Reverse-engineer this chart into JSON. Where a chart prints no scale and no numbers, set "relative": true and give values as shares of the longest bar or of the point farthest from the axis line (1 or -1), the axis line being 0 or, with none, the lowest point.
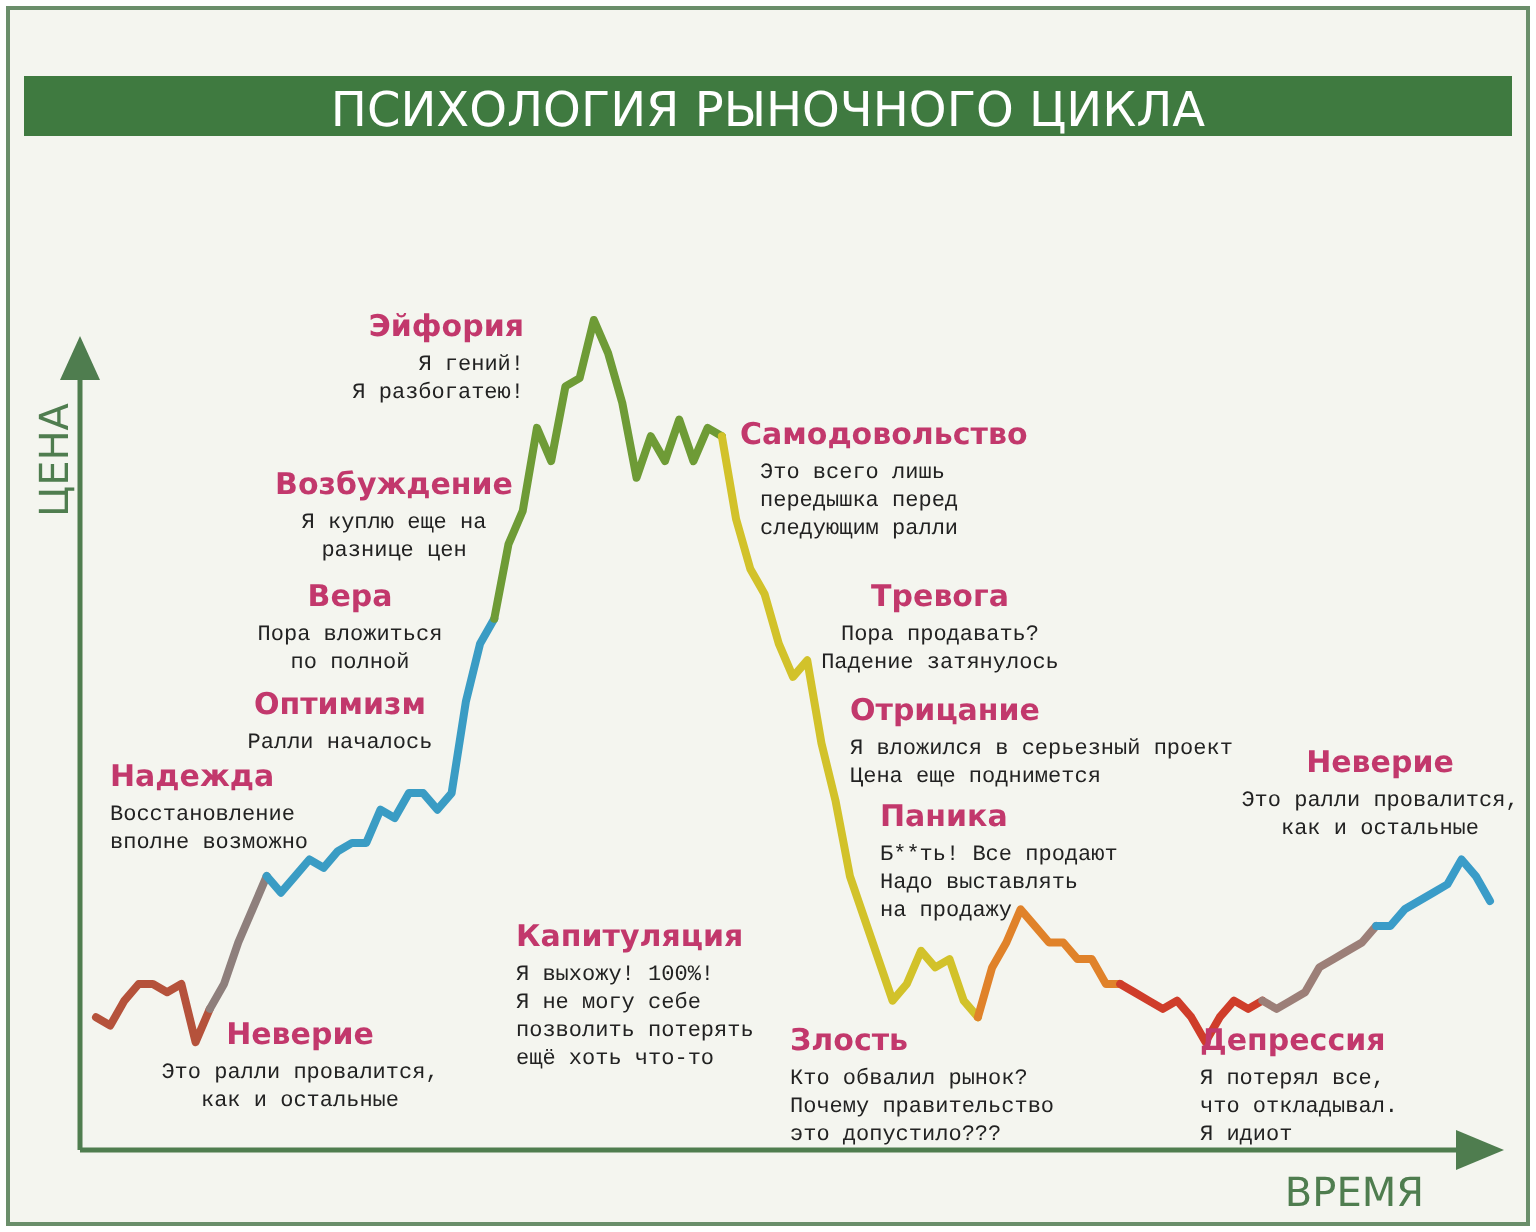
{
  "chart_data": {
    "type": "line",
    "relative": true,
    "title": "ПСИХОЛОГИЯ РЫНОЧНОГО ЦИКЛА",
    "xlabel": "ВРЕМЯ",
    "ylabel": "ЦЕНА",
    "categories": [
      null,
      null,
      null,
      null,
      null,
      null,
      null,
      null,
      null,
      null,
      null,
      null,
      null,
      null,
      null,
      null,
      null,
      null,
      null,
      null,
      null,
      null,
      null,
      null,
      null,
      null,
      null,
      null,
      null,
      null,
      null,
      null,
      null,
      null,
      null,
      null,
      null,
      null,
      null,
      null,
      null,
      null,
      null,
      null,
      null,
      null,
      null,
      null,
      null,
      null,
      null,
      null,
      null,
      null,
      null,
      null,
      null,
      null,
      null,
      null,
      null,
      null,
      null,
      null,
      null,
      null,
      null,
      null,
      null,
      null,
      null,
      null,
      null,
      null,
      null,
      null,
      null,
      null,
      null,
      null,
      null,
      null,
      null,
      null,
      null,
      null,
      null,
      null,
      null,
      null,
      null,
      null,
      null,
      null,
      null,
      null,
      null,
      null,
      null
    ],
    "series": [
      {
        "color": "#b5523b",
        "values": [
          0.16,
          0.15,
          0.18,
          0.2,
          0.2,
          0.19,
          0.2,
          0.13,
          0.17,
          null,
          null,
          null,
          null,
          null,
          null,
          null,
          null,
          null,
          null,
          null,
          null,
          null,
          null,
          null,
          null,
          null,
          null,
          null,
          null,
          null,
          null,
          null,
          null,
          null,
          null,
          null,
          null,
          null,
          null,
          null,
          null,
          null,
          null,
          null,
          null,
          null,
          null,
          null,
          null,
          null,
          null,
          null,
          null,
          null,
          null,
          null,
          null,
          null,
          null,
          null,
          null,
          null,
          null,
          null,
          null,
          null,
          null,
          null,
          null,
          null,
          null,
          null,
          null,
          null,
          null,
          null,
          null,
          null,
          null,
          null,
          null,
          null,
          null,
          null,
          null,
          null,
          null,
          null,
          null,
          null,
          null,
          null,
          null,
          null,
          null,
          null,
          null,
          null,
          null
        ]
      },
      {
        "color": "#8e7f7c",
        "values": [
          null,
          null,
          null,
          null,
          null,
          null,
          null,
          null,
          0.17,
          0.2,
          0.25,
          0.29,
          0.33,
          null,
          null,
          null,
          null,
          null,
          null,
          null,
          null,
          null,
          null,
          null,
          null,
          null,
          null,
          null,
          null,
          null,
          null,
          null,
          null,
          null,
          null,
          null,
          null,
          null,
          null,
          null,
          null,
          null,
          null,
          null,
          null,
          null,
          null,
          null,
          null,
          null,
          null,
          null,
          null,
          null,
          null,
          null,
          null,
          null,
          null,
          null,
          null,
          null,
          null,
          null,
          null,
          null,
          null,
          null,
          null,
          null,
          null,
          null,
          null,
          null,
          null,
          null,
          null,
          null,
          null,
          null,
          null,
          null,
          null,
          null,
          null,
          null,
          null,
          null,
          null,
          null,
          null,
          null,
          null,
          null,
          null,
          null,
          null,
          null,
          null
        ]
      },
      {
        "color": "#3a9cc4",
        "values": [
          null,
          null,
          null,
          null,
          null,
          null,
          null,
          null,
          null,
          null,
          null,
          null,
          0.33,
          0.31,
          0.33,
          0.35,
          0.34,
          0.36,
          0.37,
          0.37,
          0.41,
          0.4,
          0.43,
          0.43,
          0.41,
          0.43,
          0.54,
          0.61,
          0.64,
          null,
          null,
          null,
          null,
          null,
          null,
          null,
          null,
          null,
          null,
          null,
          null,
          null,
          null,
          null,
          null,
          null,
          null,
          null,
          null,
          null,
          null,
          null,
          null,
          null,
          null,
          null,
          null,
          null,
          null,
          null,
          null,
          null,
          null,
          null,
          null,
          null,
          null,
          null,
          null,
          null,
          null,
          null,
          null,
          null,
          null,
          null,
          null,
          null,
          null,
          null,
          null,
          null,
          null,
          null,
          null,
          null,
          null,
          null,
          null,
          null,
          null,
          null,
          null,
          null,
          null,
          null,
          null,
          null,
          null
        ]
      },
      {
        "color": "#6e9b36",
        "values": [
          null,
          null,
          null,
          null,
          null,
          null,
          null,
          null,
          null,
          null,
          null,
          null,
          null,
          null,
          null,
          null,
          null,
          null,
          null,
          null,
          null,
          null,
          null,
          null,
          null,
          null,
          null,
          null,
          0.64,
          0.73,
          0.77,
          0.87,
          0.83,
          0.92,
          0.93,
          1.0,
          0.96,
          0.9,
          0.81,
          0.86,
          0.83,
          0.88,
          0.83,
          0.87,
          0.86,
          null,
          null,
          null,
          null,
          null,
          null,
          null,
          null,
          null,
          null,
          null,
          null,
          null,
          null,
          null,
          null,
          null,
          null,
          null,
          null,
          null,
          null,
          null,
          null,
          null,
          null,
          null,
          null,
          null,
          null,
          null,
          null,
          null,
          null,
          null,
          null,
          null,
          null,
          null,
          null,
          null,
          null,
          null,
          null,
          null,
          null,
          null,
          null,
          null,
          null,
          null,
          null,
          null,
          null
        ]
      },
      {
        "color": "#d2c22a",
        "values": [
          null,
          null,
          null,
          null,
          null,
          null,
          null,
          null,
          null,
          null,
          null,
          null,
          null,
          null,
          null,
          null,
          null,
          null,
          null,
          null,
          null,
          null,
          null,
          null,
          null,
          null,
          null,
          null,
          null,
          null,
          null,
          null,
          null,
          null,
          null,
          null,
          null,
          null,
          null,
          null,
          null,
          null,
          null,
          null,
          0.86,
          0.76,
          0.7,
          0.67,
          0.61,
          0.57,
          0.59,
          0.49,
          0.42,
          0.33,
          0.28,
          0.23,
          0.18,
          0.2,
          0.24,
          0.22,
          0.23,
          0.18,
          0.16,
          null,
          null,
          null,
          null,
          null,
          null,
          null,
          null,
          null,
          null,
          null,
          null,
          null,
          null,
          null,
          null,
          null,
          null,
          null,
          null,
          null,
          null,
          null,
          null,
          null,
          null,
          null,
          null,
          null,
          null,
          null,
          null,
          null,
          null,
          null,
          null
        ]
      },
      {
        "color": "#e0822a",
        "values": [
          null,
          null,
          null,
          null,
          null,
          null,
          null,
          null,
          null,
          null,
          null,
          null,
          null,
          null,
          null,
          null,
          null,
          null,
          null,
          null,
          null,
          null,
          null,
          null,
          null,
          null,
          null,
          null,
          null,
          null,
          null,
          null,
          null,
          null,
          null,
          null,
          null,
          null,
          null,
          null,
          null,
          null,
          null,
          null,
          null,
          null,
          null,
          null,
          null,
          null,
          null,
          null,
          null,
          null,
          null,
          null,
          null,
          null,
          null,
          null,
          null,
          null,
          0.16,
          0.22,
          0.25,
          0.29,
          0.27,
          0.25,
          0.25,
          0.23,
          0.23,
          0.2,
          0.2,
          null,
          null,
          null,
          null,
          null,
          null,
          null,
          null,
          null,
          null,
          null,
          null,
          null,
          null,
          null,
          null,
          null,
          null,
          null,
          null,
          null,
          null,
          null,
          null,
          null,
          null
        ]
      },
      {
        "color": "#cf3d2a",
        "values": [
          null,
          null,
          null,
          null,
          null,
          null,
          null,
          null,
          null,
          null,
          null,
          null,
          null,
          null,
          null,
          null,
          null,
          null,
          null,
          null,
          null,
          null,
          null,
          null,
          null,
          null,
          null,
          null,
          null,
          null,
          null,
          null,
          null,
          null,
          null,
          null,
          null,
          null,
          null,
          null,
          null,
          null,
          null,
          null,
          null,
          null,
          null,
          null,
          null,
          null,
          null,
          null,
          null,
          null,
          null,
          null,
          null,
          null,
          null,
          null,
          null,
          null,
          null,
          null,
          null,
          null,
          null,
          null,
          null,
          null,
          null,
          null,
          0.2,
          0.19,
          0.18,
          0.17,
          0.18,
          0.16,
          0.13,
          0.16,
          0.18,
          0.17,
          0.18,
          null,
          null,
          null,
          null,
          null,
          null,
          null,
          null,
          null,
          null,
          null,
          null,
          null,
          null,
          null,
          null
        ]
      },
      {
        "color": "#9c7f78",
        "values": [
          null,
          null,
          null,
          null,
          null,
          null,
          null,
          null,
          null,
          null,
          null,
          null,
          null,
          null,
          null,
          null,
          null,
          null,
          null,
          null,
          null,
          null,
          null,
          null,
          null,
          null,
          null,
          null,
          null,
          null,
          null,
          null,
          null,
          null,
          null,
          null,
          null,
          null,
          null,
          null,
          null,
          null,
          null,
          null,
          null,
          null,
          null,
          null,
          null,
          null,
          null,
          null,
          null,
          null,
          null,
          null,
          null,
          null,
          null,
          null,
          null,
          null,
          null,
          null,
          null,
          null,
          null,
          null,
          null,
          null,
          null,
          null,
          null,
          null,
          null,
          null,
          null,
          null,
          null,
          null,
          null,
          null,
          0.18,
          0.17,
          0.18,
          0.19,
          0.22,
          0.23,
          0.24,
          0.25,
          0.27,
          null,
          null,
          null,
          null,
          null,
          null,
          null,
          null
        ]
      },
      {
        "color": "#3a9cc8",
        "values": [
          null,
          null,
          null,
          null,
          null,
          null,
          null,
          null,
          null,
          null,
          null,
          null,
          null,
          null,
          null,
          null,
          null,
          null,
          null,
          null,
          null,
          null,
          null,
          null,
          null,
          null,
          null,
          null,
          null,
          null,
          null,
          null,
          null,
          null,
          null,
          null,
          null,
          null,
          null,
          null,
          null,
          null,
          null,
          null,
          null,
          null,
          null,
          null,
          null,
          null,
          null,
          null,
          null,
          null,
          null,
          null,
          null,
          null,
          null,
          null,
          null,
          null,
          null,
          null,
          null,
          null,
          null,
          null,
          null,
          null,
          null,
          null,
          null,
          null,
          null,
          null,
          null,
          null,
          null,
          null,
          null,
          null,
          null,
          null,
          null,
          null,
          null,
          null,
          null,
          null,
          0.27,
          0.27,
          0.29,
          0.3,
          0.31,
          0.32,
          0.35,
          0.33,
          0.3
        ]
      }
    ],
    "annotations": [
      "Неверие\nЭто ралли провалится,\nкак и остальные",
      "Надежда\nВосстановление\nвполне возможно",
      "Оптимизм\nРалли началось",
      "Вера\nПора вложиться\nпо полной",
      "Возбуждение\nЯ куплю еще на\nразнице цен",
      "Эйфория\nЯ гений!\nЯ разбогатею!",
      "Самодовольство\nЭто всего лишь\nпередышка перед\nследующим ралли",
      "Тревога\nПора продавать?\nПадение затянулось",
      "Отрицание\nЯ вложился в серьезный проект\nЦена еще поднимется",
      "Паника\nБ**ть! Все продают\nНадо выставлять\nна продажу",
      "Капитуляция\nЯ выхожу! 100%!\nЯ не могу себе\nпозволить потерять\nещё хоть что-то",
      "Злость\nКто обвалил рынок?\nПочему правительство\nэто допустило???",
      "Депрессия\nЯ потерял все,\nчто откладывал.\nЯ идиот",
      "Неверие\nЭто ралли провалится,\nкак и остальные"
    ]
  }
}
